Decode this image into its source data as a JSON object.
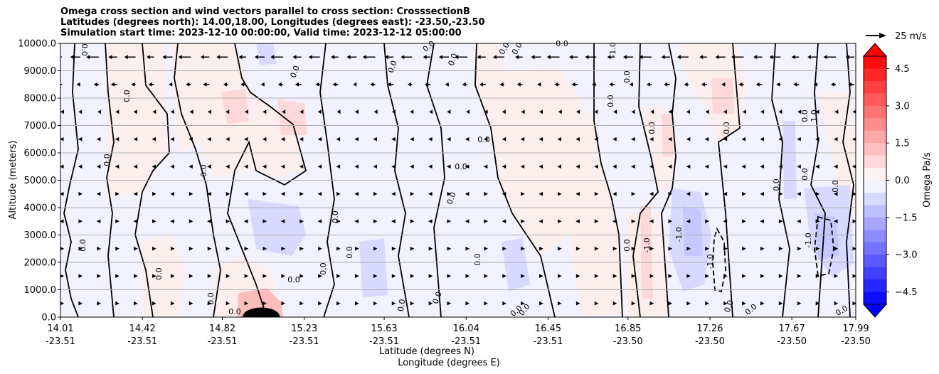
{
  "title_lines": [
    "Omega cross section and wind vectors parallel to cross section: CrosssectionB",
    "Latitudes (degrees north): 14.00,18.00, Longitudes (degrees east): -23.50,-23.50",
    "Simulation start time: 2023-12-10 00:00:00, Valid time: 2023-12-12 05:00:00"
  ],
  "chart_data": {
    "type": "heatmap",
    "title": "Omega cross section and wind vectors parallel to cross section: CrosssectionB",
    "ylabel": "Altitude (meters)",
    "xlabel_lines": [
      "Latitude (degrees N)",
      "Longitude (degrees E)"
    ],
    "ylim": [
      0,
      10000
    ],
    "y_ticks": [
      "0.0",
      "1000.0",
      "2000.0",
      "3000.0",
      "4000.0",
      "5000.0",
      "6000.0",
      "7000.0",
      "8000.0",
      "9000.0",
      "10000.0"
    ],
    "y_tick_values": [
      0,
      1000,
      2000,
      3000,
      4000,
      5000,
      6000,
      7000,
      8000,
      9000,
      10000
    ],
    "x_ticks": [
      {
        "lat": "14.01",
        "lon": "-23.51",
        "value": 14.01
      },
      {
        "lat": "14.42",
        "lon": "-23.51",
        "value": 14.42
      },
      {
        "lat": "14.82",
        "lon": "-23.51",
        "value": 14.82
      },
      {
        "lat": "15.23",
        "lon": "-23.51",
        "value": 15.23
      },
      {
        "lat": "15.63",
        "lon": "-23.51",
        "value": 15.63
      },
      {
        "lat": "16.04",
        "lon": "-23.51",
        "value": 16.04
      },
      {
        "lat": "16.45",
        "lon": "-23.51",
        "value": 16.45
      },
      {
        "lat": "16.85",
        "lon": "-23.50",
        "value": 16.85
      },
      {
        "lat": "17.26",
        "lon": "-23.50",
        "value": 17.26
      },
      {
        "lat": "17.67",
        "lon": "-23.50",
        "value": 17.67
      },
      {
        "lat": "17.99",
        "lon": "-23.50",
        "value": 17.99
      }
    ],
    "grid": "horizontal",
    "colorbar": {
      "label": "Omega Pa/s",
      "range": [
        -5,
        5
      ],
      "ticks": [
        "4.5",
        "3.0",
        "1.5",
        "0.0",
        "−1.5",
        "−3.0",
        "−4.5"
      ],
      "tick_values": [
        4.5,
        3.0,
        1.5,
        0.0,
        -1.5,
        -3.0,
        -4.5
      ],
      "cmap": "bwr",
      "extend": "both",
      "levels": 20
    },
    "quiver_key": {
      "label": "25 m/s",
      "value": 25
    },
    "contour_labels": [
      "0.0",
      "-1.0",
      "1.0"
    ],
    "regions": [
      {
        "type": "positive",
        "lat": [
          14.95,
          15.08
        ],
        "alt": [
          0,
          300
        ],
        "omega": 5.0
      },
      {
        "type": "negative",
        "lat": [
          17.25,
          17.33
        ],
        "alt": [
          800,
          3200
        ],
        "omega": -1.5
      },
      {
        "type": "negative",
        "lat": [
          17.82,
          17.94
        ],
        "alt": [
          1500,
          3500
        ],
        "omega": -2.0
      }
    ],
    "wind_rows": [
      {
        "alt": 9500,
        "u": -12
      },
      {
        "alt": 8500,
        "u": -6
      },
      {
        "alt": 7500,
        "u": -2
      },
      {
        "alt": 6500,
        "u": -1
      },
      {
        "alt": 5500,
        "u": -1
      },
      {
        "alt": 4500,
        "u": 0
      },
      {
        "alt": 3500,
        "u": 0
      },
      {
        "alt": 2500,
        "u": 1
      },
      {
        "alt": 1500,
        "u": 1
      },
      {
        "alt": 500,
        "u": 1
      }
    ]
  }
}
